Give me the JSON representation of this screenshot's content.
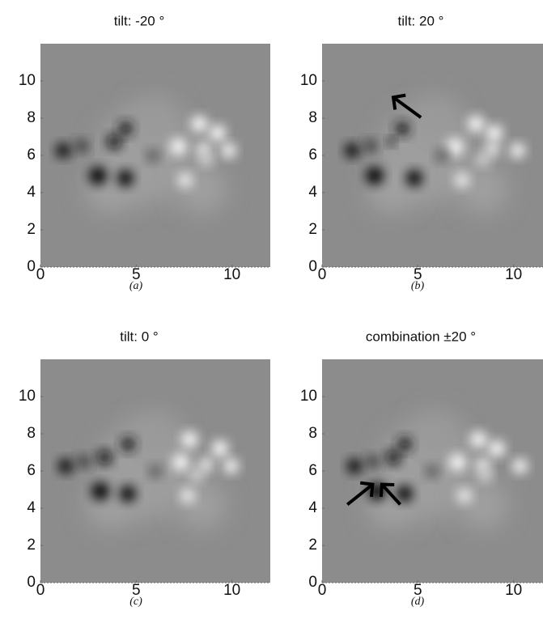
{
  "chart_data": [
    {
      "type": "image",
      "title": "tilt: -20 °",
      "caption": "(a)",
      "xlim": [
        0,
        12
      ],
      "ylim": [
        0,
        12
      ],
      "xticks": [
        0,
        5,
        10
      ],
      "yticks": [
        0,
        2,
        4,
        6,
        8,
        10
      ]
    },
    {
      "type": "image",
      "title": "tilt: 20 °",
      "caption": "(b)",
      "xlim": [
        0,
        12
      ],
      "ylim": [
        0,
        12
      ],
      "xticks": [
        0,
        5,
        10
      ],
      "yticks": [
        0,
        2,
        4,
        6,
        8,
        10
      ]
    },
    {
      "type": "image",
      "title": "tilt: 0 °",
      "caption": "(c)",
      "xlim": [
        0,
        12
      ],
      "ylim": [
        0,
        12
      ],
      "xticks": [
        0,
        5,
        10
      ],
      "yticks": [
        0,
        2,
        4,
        6,
        8,
        10
      ]
    },
    {
      "type": "image",
      "title": "combination ±20 °",
      "caption": "(d)",
      "xlim": [
        0,
        12
      ],
      "ylim": [
        0,
        12
      ],
      "xticks": [
        0,
        5,
        10
      ],
      "yticks": [
        0,
        2,
        4,
        6,
        8,
        10
      ]
    }
  ]
}
